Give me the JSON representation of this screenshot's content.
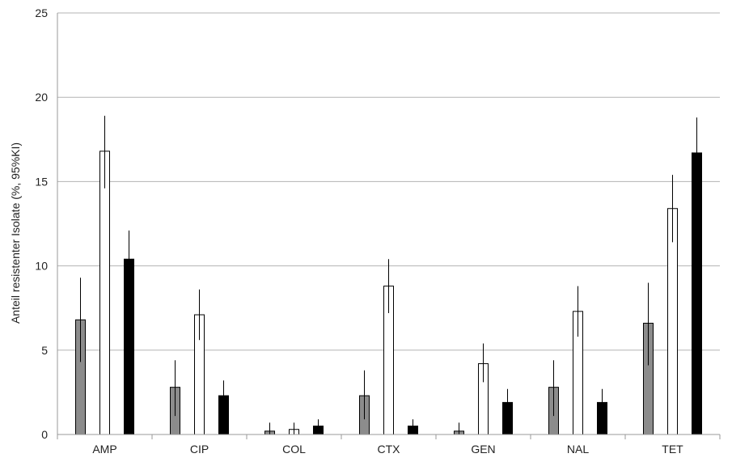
{
  "chart_data": {
    "type": "bar",
    "title": "",
    "xlabel": "",
    "ylabel": "Anteil resistenter Isolate (%, 95%KI)",
    "ylim": [
      0,
      25
    ],
    "yticks": [
      0,
      5,
      10,
      15,
      20,
      25
    ],
    "grid": true,
    "categories": [
      "AMP",
      "CIP",
      "COL",
      "CTX",
      "GEN",
      "NAL",
      "TET"
    ],
    "series": [
      {
        "color": "#8c8c8c",
        "values": [
          6.8,
          2.8,
          0.2,
          2.3,
          0.2,
          2.8,
          6.6
        ],
        "ci_low": [
          4.3,
          1.1,
          0.0,
          0.9,
          0.0,
          1.1,
          4.1
        ],
        "ci_high": [
          9.3,
          4.4,
          0.7,
          3.8,
          0.7,
          4.4,
          9.0
        ]
      },
      {
        "color": "#ffffff",
        "values": [
          16.8,
          7.1,
          0.3,
          8.8,
          4.2,
          7.3,
          13.4
        ],
        "ci_low": [
          14.6,
          5.6,
          0.0,
          7.2,
          3.1,
          5.8,
          11.4
        ],
        "ci_high": [
          18.9,
          8.6,
          0.7,
          10.4,
          5.4,
          8.8,
          15.4
        ]
      },
      {
        "color": "#000000",
        "values": [
          10.4,
          2.3,
          0.5,
          0.5,
          1.9,
          1.9,
          16.7
        ],
        "ci_low": [
          8.8,
          1.6,
          0.2,
          0.2,
          1.3,
          1.3,
          14.6
        ],
        "ci_high": [
          12.1,
          3.2,
          0.9,
          0.9,
          2.7,
          2.7,
          18.8
        ]
      }
    ]
  }
}
